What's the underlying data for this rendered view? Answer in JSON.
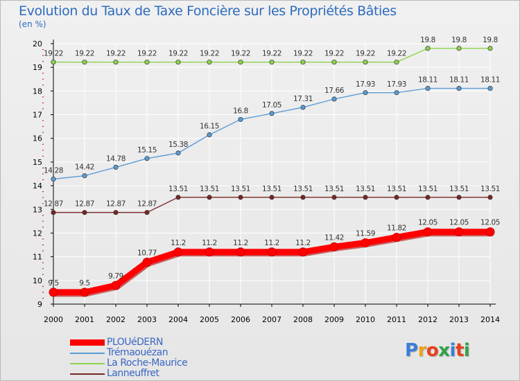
{
  "header": {
    "title": "Evolution du Taux de Taxe Foncière sur les Propriétés Bâties",
    "subtitle": "(en %)"
  },
  "brand": {
    "text": "Proxiti",
    "colors": [
      "#3b7dd8",
      "#f0a21b",
      "#e8401c",
      "#2ea24a",
      "#3b7dd8",
      "#e8401c",
      "#2ea24a"
    ]
  },
  "colors": {
    "title": "#2d6bbf",
    "grid": "#ffffff",
    "axis": "#000000"
  },
  "chart_data": {
    "type": "line",
    "title": "Evolution du Taux de Taxe Foncière sur les Propriétés Bâties",
    "subtitle": "(en %)",
    "xlabel": "",
    "ylabel": "",
    "x": [
      "2000",
      "2001",
      "2002",
      "2003",
      "2004",
      "2005",
      "2006",
      "2007",
      "2008",
      "2009",
      "2010",
      "2011",
      "2012",
      "2013",
      "2014"
    ],
    "ylim": [
      9,
      20
    ],
    "yticks": [
      "9",
      "10",
      "11",
      "12",
      "13",
      "14",
      "15",
      "16",
      "17",
      "18",
      "19",
      "20"
    ],
    "grid": true,
    "legend_position": "bottom-left",
    "series": [
      {
        "name": "PLOUéDERN",
        "color": "#ff0000",
        "values": [
          9.5,
          9.5,
          9.79,
          10.77,
          11.2,
          11.2,
          11.2,
          11.2,
          11.2,
          11.42,
          11.59,
          11.82,
          12.05,
          12.05,
          12.05
        ],
        "labels": [
          "9.5",
          "9.5",
          "9.79",
          "10.77",
          "11.2",
          "11.2",
          "11.2",
          "11.2",
          "11.2",
          "11.42",
          "11.59",
          "11.82",
          "12.05",
          "12.05",
          "12.05"
        ]
      },
      {
        "name": "Trémaouézan",
        "color": "#5b9bd5",
        "values": [
          14.28,
          14.42,
          14.78,
          15.15,
          15.38,
          16.15,
          16.8,
          17.05,
          17.31,
          17.66,
          17.93,
          17.93,
          18.11,
          18.11,
          18.11
        ],
        "labels": [
          "14.28",
          "14.42",
          "14.78",
          "15.15",
          "15.38",
          "16.15",
          "16.8",
          "17.05",
          "17.31",
          "17.66",
          "17.93",
          "17.93",
          "18.11",
          "18.11",
          "18.11"
        ]
      },
      {
        "name": "La Roche-Maurice",
        "color": "#8fd24c",
        "values": [
          19.22,
          19.22,
          19.22,
          19.22,
          19.22,
          19.22,
          19.22,
          19.22,
          19.22,
          19.22,
          19.22,
          19.22,
          19.8,
          19.8,
          19.8
        ],
        "labels": [
          "19.22",
          "19.22",
          "19.22",
          "19.22",
          "19.22",
          "19.22",
          "19.22",
          "19.22",
          "19.22",
          "19.22",
          "19.22",
          "19.22",
          "19.8",
          "19.8",
          "19.8"
        ]
      },
      {
        "name": "Lanneuffret",
        "color": "#7a2525",
        "values": [
          12.87,
          12.87,
          12.87,
          12.87,
          13.51,
          13.51,
          13.51,
          13.51,
          13.51,
          13.51,
          13.51,
          13.51,
          13.51,
          13.51,
          13.51
        ],
        "labels": [
          "12.87",
          "12.87",
          "12.87",
          "12.87",
          "13.51",
          "13.51",
          "13.51",
          "13.51",
          "13.51",
          "13.51",
          "13.51",
          "13.51",
          "13.51",
          "13.51",
          "13.51"
        ]
      }
    ]
  }
}
